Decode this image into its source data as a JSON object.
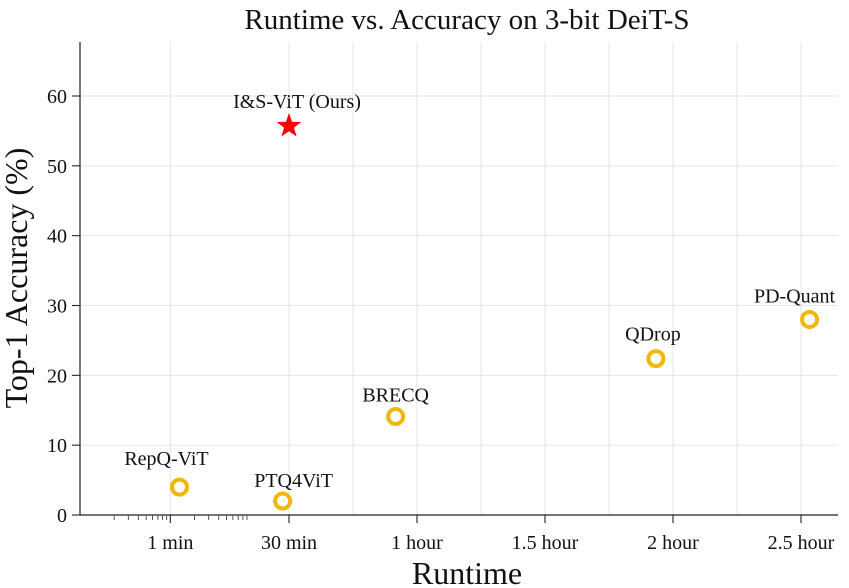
{
  "chart_data": {
    "type": "scatter",
    "title": "Runtime vs. Accuracy on 3-bit DeiT-S",
    "xlabel": "Runtime",
    "ylabel": "Top-1 Accuracy (%)",
    "x_unit": "minutes",
    "xlim_minutes": [
      0.1,
      160
    ],
    "ylim": [
      0,
      68
    ],
    "x_ticks": [
      {
        "label": "1 min",
        "value_minutes": 1
      },
      {
        "label": "30 min",
        "value_minutes": 30
      },
      {
        "label": "1 hour",
        "value_minutes": 60
      },
      {
        "label": "1.5 hour",
        "value_minutes": 90
      },
      {
        "label": "2 hour",
        "value_minutes": 120
      },
      {
        "label": "2.5 hour",
        "value_minutes": 150
      }
    ],
    "y_ticks": [
      0,
      10,
      20,
      30,
      40,
      50,
      60
    ],
    "grid": true,
    "points": [
      {
        "name": "RepQ-ViT",
        "runtime_minutes": 1.3,
        "accuracy": 4.0,
        "marker": "ring",
        "color": "#F2B705"
      },
      {
        "name": "PTQ4ViT",
        "runtime_minutes": 25,
        "accuracy": 2.0,
        "marker": "ring",
        "color": "#F2B705"
      },
      {
        "name": "BRECQ",
        "runtime_minutes": 55,
        "accuracy": 14.1,
        "marker": "ring",
        "color": "#F2B705"
      },
      {
        "name": "QDrop",
        "runtime_minutes": 116,
        "accuracy": 22.4,
        "marker": "ring",
        "color": "#F2B705"
      },
      {
        "name": "PD-Quant",
        "runtime_minutes": 152,
        "accuracy": 28.0,
        "marker": "ring",
        "color": "#F2B705"
      },
      {
        "name": "I&S-ViT (Ours)",
        "runtime_minutes": 30,
        "accuracy": 55.7,
        "marker": "star",
        "color": "#FF0000"
      }
    ]
  }
}
